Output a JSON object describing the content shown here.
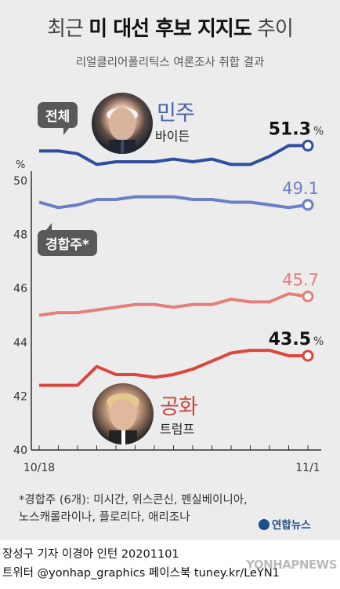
{
  "title": {
    "part1": "최근",
    "part2": "미 대선 후보 지지도",
    "part3": "추이"
  },
  "subtitle": "리얼클리어폴리틱스 여론조사 취합 결과",
  "tags": {
    "all": "전체",
    "swing": "경합주*"
  },
  "candidates": {
    "dem": {
      "party": "민주",
      "name": "바이든",
      "icon": "biden-portrait"
    },
    "rep": {
      "party": "공화",
      "name": "트럼프",
      "icon": "trump-portrait"
    }
  },
  "colors": {
    "dem_dark": "#2e4f9e",
    "dem_light": "#6b7fc4",
    "rep_dark": "#d9473f",
    "rep_light": "#e4807a",
    "background": "#ececec"
  },
  "chart_data": {
    "type": "line",
    "x": [
      "10/18",
      "10/19",
      "10/20",
      "10/21",
      "10/22",
      "10/23",
      "10/24",
      "10/25",
      "10/26",
      "10/27",
      "10/28",
      "10/29",
      "10/30",
      "10/31",
      "11/1"
    ],
    "xtick_labels": [
      "10/18",
      "11/1"
    ],
    "ylabel": "%",
    "ylim": [
      40,
      51.5
    ],
    "yticks": [
      40,
      42,
      44,
      46,
      48,
      50
    ],
    "grid": false,
    "series": [
      {
        "name": "전체 바이든",
        "color": "#2e4f9e",
        "values": [
          51.1,
          51.1,
          51.0,
          50.6,
          50.7,
          50.7,
          50.7,
          50.8,
          50.7,
          50.8,
          50.6,
          50.6,
          50.9,
          51.3,
          51.3
        ],
        "end_label": "51.3",
        "end_unit": "%"
      },
      {
        "name": "경합주 바이든",
        "color": "#6b7fc4",
        "values": [
          49.2,
          49.0,
          49.1,
          49.3,
          49.3,
          49.4,
          49.4,
          49.4,
          49.3,
          49.3,
          49.2,
          49.2,
          49.1,
          49.0,
          49.1
        ],
        "end_label": "49.1",
        "end_unit": ""
      },
      {
        "name": "경합주 트럼프",
        "color": "#e4807a",
        "values": [
          45.0,
          45.1,
          45.1,
          45.2,
          45.3,
          45.4,
          45.4,
          45.3,
          45.4,
          45.4,
          45.6,
          45.5,
          45.5,
          45.8,
          45.7
        ],
        "end_label": "45.7",
        "end_unit": ""
      },
      {
        "name": "전체 트럼프",
        "color": "#d9473f",
        "values": [
          42.4,
          42.4,
          42.4,
          43.1,
          42.8,
          42.8,
          42.7,
          42.8,
          43.0,
          43.3,
          43.6,
          43.7,
          43.7,
          43.5,
          43.5
        ],
        "end_label": "43.5",
        "end_unit": "%"
      }
    ]
  },
  "footnote": {
    "line1": "*경합주 (6개): 미시간, 위스콘신, 펜실베이니아,",
    "line2": "노스캐롤라이나, 플로리다, 애리조나"
  },
  "logo": "연합뉴스",
  "credit": {
    "line1": "장성구 기자  이경아 인턴  20201101",
    "line2": "트위터 @yonhap_graphics  페이스북 tuney.kr/LeYN1"
  },
  "watermark": "YONHAPNEWS"
}
